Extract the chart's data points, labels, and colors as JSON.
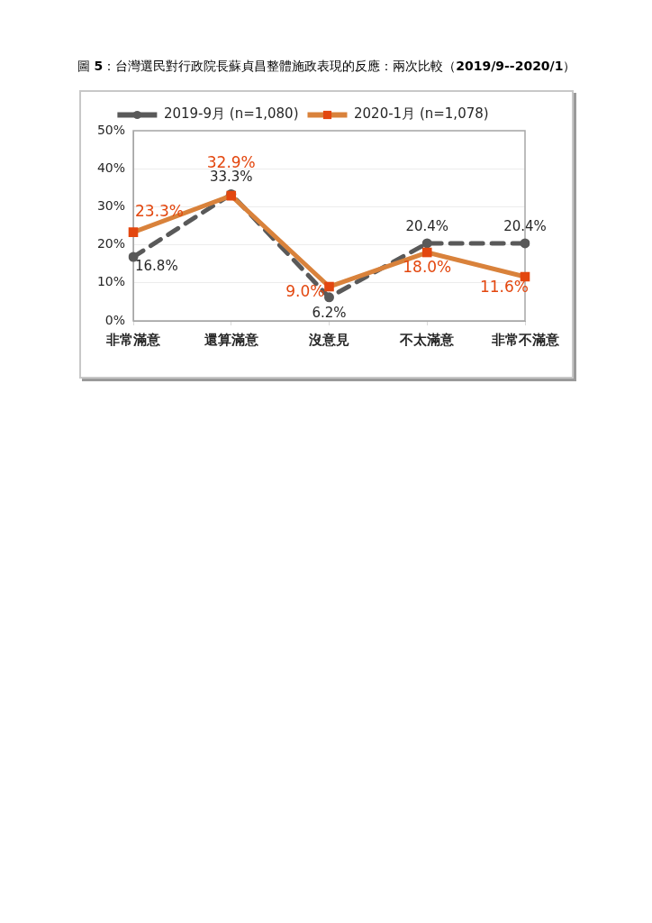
{
  "chart_data": {
    "type": "line",
    "title": "圖 5：台灣選民對行政院長蘇貞昌整體施政表現的反應：兩次比較（2019/9--2020/1）",
    "categories": [
      "非常滿意",
      "還算滿意",
      "沒意見",
      "不太滿意",
      "非常不滿意"
    ],
    "series": [
      {
        "name": "2019-9月 (n=1,080)",
        "color": "#595959",
        "line_style": "dashed",
        "marker": "circle",
        "values": [
          16.8,
          33.3,
          6.2,
          20.4,
          20.4
        ],
        "value_labels": [
          "16.8%",
          "33.3%",
          "6.2%",
          "20.4%",
          "20.4%"
        ]
      },
      {
        "name": "2020-1月 (n=1,078)",
        "color": "#d9823b",
        "colors": [
          "#e3470f",
          "#e3470f",
          "#e3470f",
          "#e3470f",
          "#e3470f"
        ],
        "line_style": "solid",
        "marker": "square",
        "values": [
          23.3,
          32.9,
          9.0,
          18.0,
          11.6
        ],
        "value_labels": [
          "23.3%",
          "32.9%",
          "9.0%",
          "18.0%",
          "11.6%"
        ]
      }
    ],
    "ylim": [
      0,
      50
    ],
    "yticks": [
      {
        "value": 0,
        "label": "0%"
      },
      {
        "value": 10,
        "label": "10%"
      },
      {
        "value": 20,
        "label": "20%"
      },
      {
        "value": 30,
        "label": "30%"
      },
      {
        "value": 40,
        "label": "40%"
      },
      {
        "value": 50,
        "label": "50%"
      }
    ],
    "grid": "y",
    "legend": "top"
  }
}
